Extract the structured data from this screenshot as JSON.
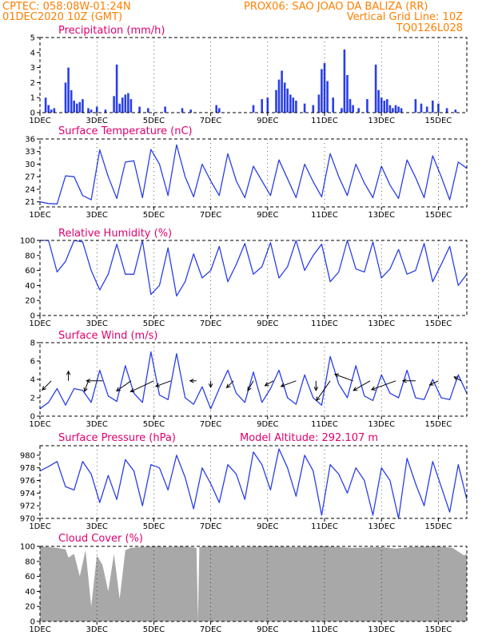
{
  "header": {
    "line1_left": "CPTEC:   058:08W-01:24N",
    "line1_right": "PROX06: SAO JOAO DA BALIZA (RR)",
    "line2_left": "01DEC2020 10Z (GMT)",
    "line2_right": "Vertical Grid Line: 10Z",
    "line3_right": "TQ0126L028"
  },
  "colors": {
    "line": "#2a3fe8",
    "bar": "#2a3fe8",
    "cloud": "#a8a8a8",
    "arrow": "#000000"
  },
  "chart_data": [
    {
      "type": "bar",
      "title": "Precipitation (mm/h)",
      "x_unit": "day of December 2020",
      "x_ticks": [
        "1DEC",
        "3DEC",
        "5DEC",
        "7DEC",
        "9DEC",
        "11DEC",
        "13DEC",
        "15DEC"
      ],
      "ylim": [
        0,
        5
      ],
      "y_ticks": [
        0,
        1,
        2,
        3,
        4,
        5
      ],
      "x": [
        1.2,
        1.3,
        1.4,
        1.5,
        1.9,
        2.0,
        2.1,
        2.2,
        2.3,
        2.4,
        2.5,
        2.7,
        2.8,
        3.0,
        3.3,
        3.6,
        3.7,
        3.8,
        3.9,
        4.0,
        4.1,
        4.2,
        4.5,
        4.8,
        5.4,
        6.0,
        6.3,
        7.2,
        7.3,
        8.5,
        8.8,
        9.0,
        9.3,
        9.4,
        9.5,
        9.6,
        9.7,
        9.8,
        9.9,
        10.0,
        10.3,
        10.6,
        10.8,
        10.9,
        11.0,
        11.1,
        11.3,
        11.6,
        11.7,
        11.8,
        11.9,
        12.0,
        12.2,
        12.5,
        12.8,
        12.9,
        13.0,
        13.1,
        13.2,
        13.3,
        13.4,
        13.5,
        13.6,
        13.7,
        14.2,
        14.4,
        14.6,
        14.8,
        15.0,
        15.3,
        15.6
      ],
      "values": [
        1.0,
        0.5,
        0.2,
        0.3,
        2.0,
        3.0,
        1.5,
        0.8,
        0.6,
        0.7,
        0.9,
        0.3,
        0.2,
        0.4,
        0.2,
        1.1,
        3.2,
        0.6,
        1.0,
        1.2,
        1.3,
        0.9,
        0.4,
        0.3,
        0.4,
        0.3,
        0.2,
        0.5,
        0.3,
        0.5,
        0.9,
        1.0,
        1.5,
        2.2,
        2.8,
        2.0,
        1.6,
        1.2,
        1.0,
        0.8,
        0.6,
        0.5,
        1.2,
        2.9,
        3.3,
        2.1,
        1.0,
        0.3,
        4.2,
        2.5,
        0.9,
        0.5,
        0.3,
        0.9,
        3.2,
        1.5,
        1.0,
        0.8,
        0.9,
        0.5,
        0.3,
        0.5,
        0.4,
        0.3,
        0.9,
        0.6,
        0.4,
        0.8,
        0.6,
        0.3,
        0.2
      ]
    },
    {
      "type": "line",
      "title": "Surface Temperature (nC)",
      "x_ticks": [
        "1DEC",
        "3DEC",
        "5DEC",
        "7DEC",
        "9DEC",
        "11DEC",
        "13DEC",
        "15DEC"
      ],
      "ylim": [
        19.8,
        36
      ],
      "y_ticks": [
        21,
        24,
        27,
        30,
        33,
        36
      ],
      "x": [
        1.0,
        1.3,
        1.6,
        1.9,
        2.2,
        2.5,
        2.8,
        3.1,
        3.4,
        3.7,
        4.0,
        4.3,
        4.6,
        4.9,
        5.2,
        5.5,
        5.8,
        6.1,
        6.4,
        6.7,
        7.0,
        7.3,
        7.6,
        7.9,
        8.2,
        8.5,
        8.8,
        9.1,
        9.4,
        9.7,
        10.0,
        10.3,
        10.6,
        10.9,
        11.2,
        11.5,
        11.8,
        12.1,
        12.4,
        12.7,
        13.0,
        13.3,
        13.6,
        13.9,
        14.2,
        14.5,
        14.8,
        15.1,
        15.4,
        15.7,
        16.0
      ],
      "values": [
        21.0,
        20.6,
        20.5,
        27.2,
        27.0,
        22.5,
        21.5,
        33.4,
        27.0,
        21.8,
        30.5,
        30.8,
        22.0,
        33.5,
        30.0,
        22.5,
        34.6,
        27.0,
        22.2,
        30.0,
        26.0,
        22.5,
        32.5,
        26.0,
        22.0,
        29.5,
        26.0,
        22.5,
        31.0,
        26.5,
        22.0,
        30.0,
        25.8,
        22.2,
        32.5,
        27.0,
        22.5,
        30.0,
        25.5,
        22.0,
        29.5,
        25.0,
        21.8,
        31.0,
        26.8,
        22.0,
        32.0,
        27.0,
        21.5,
        30.5,
        29.0
      ]
    },
    {
      "type": "line",
      "title": "Relative Humidity (%)",
      "x_ticks": [
        "1DEC",
        "3DEC",
        "5DEC",
        "7DEC",
        "9DEC",
        "11DEC",
        "13DEC",
        "15DEC"
      ],
      "ylim": [
        0,
        100
      ],
      "y_ticks": [
        0,
        20,
        40,
        60,
        80,
        100
      ],
      "x": [
        1.0,
        1.3,
        1.6,
        1.9,
        2.2,
        2.5,
        2.8,
        3.1,
        3.4,
        3.7,
        4.0,
        4.3,
        4.6,
        4.9,
        5.2,
        5.5,
        5.8,
        6.1,
        6.4,
        6.7,
        7.0,
        7.3,
        7.6,
        7.9,
        8.2,
        8.5,
        8.8,
        9.1,
        9.4,
        9.7,
        10.0,
        10.3,
        10.6,
        10.9,
        11.2,
        11.5,
        11.8,
        12.1,
        12.4,
        12.7,
        13.0,
        13.3,
        13.6,
        13.9,
        14.2,
        14.5,
        14.8,
        15.1,
        15.4,
        15.7,
        16.0
      ],
      "values": [
        100,
        100,
        58,
        72,
        100,
        98,
        60,
        34,
        55,
        95,
        55,
        55,
        100,
        28,
        40,
        90,
        26,
        45,
        82,
        50,
        60,
        92,
        45,
        68,
        96,
        55,
        65,
        97,
        50,
        65,
        100,
        60,
        80,
        95,
        45,
        58,
        100,
        62,
        58,
        98,
        50,
        62,
        88,
        55,
        60,
        96,
        45,
        68,
        92,
        40,
        55
      ]
    },
    {
      "type": "line",
      "title": "Surface Wind (m/s)",
      "x_ticks": [
        "1DEC",
        "3DEC",
        "5DEC",
        "7DEC",
        "9DEC",
        "11DEC",
        "13DEC",
        "15DEC"
      ],
      "ylim": [
        0,
        8
      ],
      "y_ticks": [
        0,
        2,
        4,
        6,
        8
      ],
      "x": [
        1.0,
        1.3,
        1.6,
        1.9,
        2.2,
        2.5,
        2.8,
        3.1,
        3.4,
        3.7,
        4.0,
        4.3,
        4.6,
        4.9,
        5.2,
        5.5,
        5.8,
        6.1,
        6.4,
        6.7,
        7.0,
        7.3,
        7.6,
        7.9,
        8.2,
        8.5,
        8.8,
        9.1,
        9.4,
        9.7,
        10.0,
        10.3,
        10.6,
        10.9,
        11.2,
        11.5,
        11.8,
        12.1,
        12.4,
        12.7,
        13.0,
        13.3,
        13.6,
        13.9,
        14.2,
        14.5,
        14.8,
        15.1,
        15.4,
        15.7,
        16.0
      ],
      "values": [
        0.8,
        1.5,
        3.0,
        1.2,
        3.0,
        2.8,
        1.5,
        5.0,
        2.2,
        1.6,
        5.5,
        2.5,
        1.5,
        7.0,
        2.3,
        1.8,
        6.8,
        2.0,
        1.3,
        3.2,
        0.8,
        3.0,
        5.0,
        2.5,
        1.5,
        4.8,
        1.5,
        3.0,
        5.0,
        2.0,
        1.3,
        4.5,
        2.0,
        1.2,
        6.5,
        3.5,
        2.0,
        5.5,
        2.2,
        1.7,
        4.5,
        2.5,
        2.0,
        5.0,
        2.0,
        1.8,
        4.0,
        2.0,
        1.8,
        4.5,
        2.5
      ],
      "arrows": [
        {
          "x": 1.4,
          "dir": 225,
          "len": 0.8
        },
        {
          "x": 2.0,
          "dir": 0,
          "len": 0.6
        },
        {
          "x": 2.7,
          "dir": 200,
          "len": 0.7
        },
        {
          "x": 3.2,
          "dir": 270,
          "len": 1.0
        },
        {
          "x": 4.2,
          "dir": 235,
          "len": 1.1
        },
        {
          "x": 5.0,
          "dir": 245,
          "len": 1.6
        },
        {
          "x": 5.6,
          "dir": 250,
          "len": 1.0
        },
        {
          "x": 6.5,
          "dir": 270,
          "len": 0.4
        },
        {
          "x": 7.0,
          "dir": 180,
          "len": 0.4
        },
        {
          "x": 7.8,
          "dir": 225,
          "len": 0.6
        },
        {
          "x": 8.5,
          "dir": 210,
          "len": 0.7
        },
        {
          "x": 9.2,
          "dir": 240,
          "len": 0.6
        },
        {
          "x": 10.0,
          "dir": 250,
          "len": 1.0
        },
        {
          "x": 10.7,
          "dir": 180,
          "len": 0.6
        },
        {
          "x": 11.2,
          "dir": 215,
          "len": 1.5
        },
        {
          "x": 12.0,
          "dir": 290,
          "len": 1.2
        },
        {
          "x": 12.6,
          "dir": 240,
          "len": 1.2
        },
        {
          "x": 13.5,
          "dir": 250,
          "len": 1.6
        },
        {
          "x": 14.2,
          "dir": 270,
          "len": 0.8
        },
        {
          "x": 15.0,
          "dir": 245,
          "len": 0.6
        },
        {
          "x": 15.8,
          "dir": 300,
          "len": 0.5
        }
      ]
    },
    {
      "type": "line",
      "title": "Surface Pressure (hPa)",
      "annotation": "Model Altitude: 292.107 m",
      "x_ticks": [
        "1DEC",
        "3DEC",
        "5DEC",
        "7DEC",
        "9DEC",
        "11DEC",
        "13DEC",
        "15DEC"
      ],
      "ylim": [
        970,
        981.5
      ],
      "y_ticks": [
        970,
        972,
        974,
        976,
        978,
        980
      ],
      "x": [
        1.0,
        1.3,
        1.6,
        1.9,
        2.2,
        2.5,
        2.8,
        3.1,
        3.4,
        3.7,
        4.0,
        4.3,
        4.6,
        4.9,
        5.2,
        5.5,
        5.8,
        6.1,
        6.4,
        6.7,
        7.0,
        7.3,
        7.6,
        7.9,
        8.2,
        8.5,
        8.8,
        9.1,
        9.4,
        9.7,
        10.0,
        10.3,
        10.6,
        10.9,
        11.2,
        11.5,
        11.8,
        12.1,
        12.4,
        12.7,
        13.0,
        13.3,
        13.6,
        13.9,
        14.2,
        14.5,
        14.8,
        15.1,
        15.4,
        15.7,
        16.0
      ],
      "values": [
        977.5,
        978.2,
        979.0,
        975.0,
        974.5,
        979.0,
        977.0,
        972.5,
        976.8,
        973.0,
        979.3,
        977.5,
        972.0,
        978.5,
        978.0,
        974.5,
        980.0,
        976.5,
        971.5,
        978.0,
        975.5,
        972.5,
        978.5,
        977.0,
        973.0,
        980.5,
        978.5,
        974.5,
        981.0,
        978.0,
        973.5,
        980.0,
        977.5,
        970.5,
        978.5,
        977.0,
        974.0,
        978.0,
        976.0,
        970.5,
        978.0,
        976.0,
        970.0,
        979.5,
        975.5,
        972.0,
        979.0,
        975.0,
        971.0,
        978.5,
        973.0
      ]
    },
    {
      "type": "area",
      "title": "Cloud Cover (%)",
      "x_ticks": [
        "1DEC",
        "3DEC",
        "5DEC",
        "7DEC",
        "9DEC",
        "11DEC",
        "13DEC",
        "15DEC"
      ],
      "ylim": [
        0,
        100
      ],
      "y_ticks": [
        0,
        20,
        40,
        60,
        80,
        100
      ],
      "x": [
        1.0,
        1.3,
        1.6,
        1.9,
        2.0,
        2.2,
        2.4,
        2.6,
        2.8,
        3.0,
        3.2,
        3.4,
        3.6,
        3.8,
        4.0,
        4.2,
        4.5,
        5.0,
        5.5,
        6.0,
        6.3,
        6.5,
        6.55,
        6.6,
        7.0,
        8.0,
        9.0,
        10.0,
        11.0,
        12.0,
        13.0,
        13.5,
        14.0,
        15.0,
        15.5,
        15.9,
        16.0
      ],
      "values": [
        100,
        99,
        98,
        96,
        85,
        90,
        60,
        95,
        20,
        88,
        75,
        40,
        90,
        30,
        95,
        98,
        99,
        100,
        99,
        100,
        99,
        98,
        2,
        99,
        100,
        99,
        100,
        99,
        100,
        98,
        99,
        97,
        99,
        100,
        98,
        88,
        90
      ]
    }
  ]
}
